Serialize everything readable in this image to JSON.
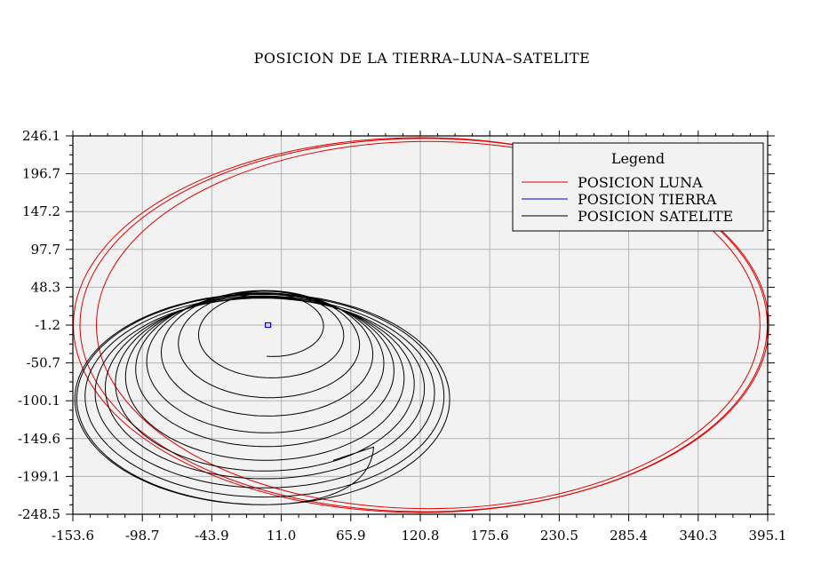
{
  "chart_data": {
    "type": "line",
    "title": "POSICION DE LA TIERRA–LUNA–SATELITE",
    "xlabel": "",
    "ylabel": "",
    "xlim": [
      -153.6,
      395.1
    ],
    "ylim": [
      -248.5,
      246.1
    ],
    "x_ticks": [
      "-153.6",
      "-98.7",
      "-43.9",
      "11.0",
      "65.9",
      "120.8",
      "175.6",
      "230.5",
      "285.4",
      "340.3",
      "395.1"
    ],
    "y_ticks": [
      "246.1",
      "196.7",
      "147.2",
      "97.7",
      "48.3",
      "-1.2",
      "-50.7",
      "-100.1",
      "-149.6",
      "-199.1",
      "-248.5"
    ],
    "grid": true,
    "legend": {
      "title": "Legend",
      "position": "top-right",
      "entries": [
        {
          "label": "POSICION LUNA",
          "color": "#e00000"
        },
        {
          "label": "POSICION TIERRA",
          "color": "#0000cc"
        },
        {
          "label": "POSICION SATELITE",
          "color": "#000000"
        }
      ]
    },
    "series": [
      {
        "name": "POSICION LUNA",
        "color": "#e00000",
        "kind": "ellipse-loops",
        "loops": [
          {
            "cx": 120.8,
            "cy": -1.2,
            "rx": 274.0,
            "ry": 245.0
          },
          {
            "cx": 124.0,
            "cy": -1.2,
            "rx": 272.0,
            "ry": 244.0
          },
          {
            "cx": 127.0,
            "cy": -1.2,
            "rx": 262.0,
            "ry": 240.0
          }
        ]
      },
      {
        "name": "POSICION TIERRA",
        "color": "#0000cc",
        "kind": "marker",
        "x": 0.5,
        "y": -1.2
      },
      {
        "name": "POSICION SATELITE",
        "color": "#000000",
        "kind": "spiral",
        "start": {
          "x": -0.5,
          "y": -42.0
        },
        "end": {
          "x": 52.0,
          "y": -178.0
        },
        "loops": [
          {
            "cx": 0.0,
            "cy": -2.0,
            "rx": 40.0,
            "ry": 40.0
          },
          {
            "cx": -1.0,
            "cy": -14.0,
            "rx": 58.0,
            "ry": 56.0
          },
          {
            "cx": -2.0,
            "cy": -26.0,
            "rx": 72.0,
            "ry": 70.0
          },
          {
            "cx": -3.0,
            "cy": -38.0,
            "rx": 84.0,
            "ry": 82.0
          },
          {
            "cx": -4.0,
            "cy": -50.0,
            "rx": 94.0,
            "ry": 92.0
          },
          {
            "cx": -4.0,
            "cy": -60.0,
            "rx": 102.0,
            "ry": 100.0
          },
          {
            "cx": -4.0,
            "cy": -70.0,
            "rx": 110.0,
            "ry": 108.0
          },
          {
            "cx": -4.0,
            "cy": -78.0,
            "rx": 118.0,
            "ry": 114.0
          },
          {
            "cx": -4.0,
            "cy": -84.0,
            "rx": 126.0,
            "ry": 118.0
          },
          {
            "cx": -4.0,
            "cy": -90.0,
            "rx": 134.0,
            "ry": 124.0
          },
          {
            "cx": -4.0,
            "cy": -94.0,
            "rx": 142.0,
            "ry": 132.0
          },
          {
            "cx": -4.0,
            "cy": -98.0,
            "rx": 148.0,
            "ry": 138.0
          }
        ]
      }
    ]
  }
}
